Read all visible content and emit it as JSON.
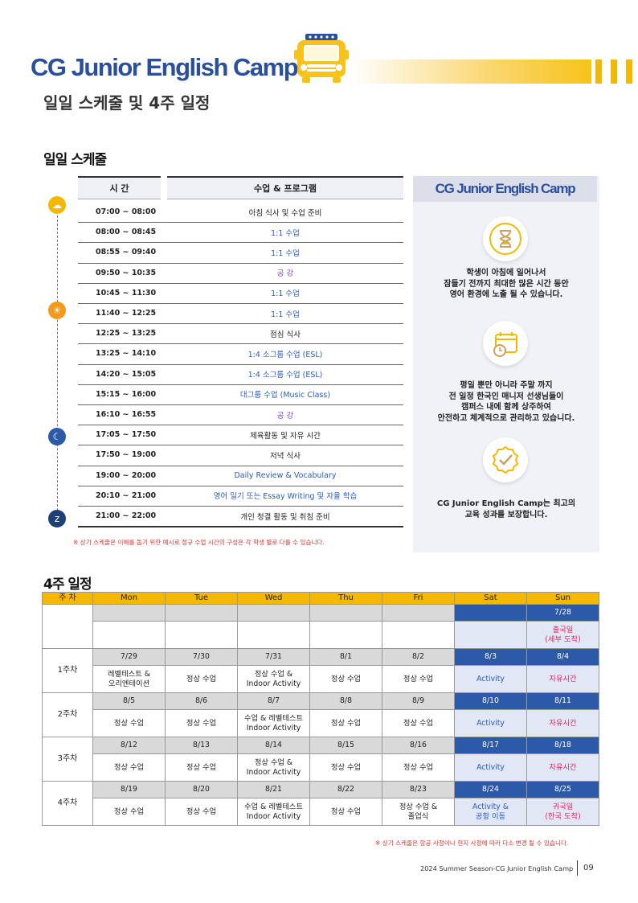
{
  "header": {
    "title": "CG Junior English Camp",
    "subtitle": "일일 스케줄 및 4주 일정"
  },
  "daily": {
    "section_title": "일일 스케줄",
    "col_time": "시 간",
    "col_program": "수업 & 프로그램",
    "rows": [
      {
        "time": "07:00 ~ 08:00",
        "program": "아침 식사 및 수업 준비",
        "color": "#222222"
      },
      {
        "time": "08:00 ~ 08:45",
        "program": "1:1 수업",
        "color": "#2a5bc0"
      },
      {
        "time": "08:55 ~ 09:40",
        "program": "1:1 수업",
        "color": "#2a5bc0"
      },
      {
        "time": "09:50 ~ 10:35",
        "program": "공 강",
        "color": "#8a3fb5"
      },
      {
        "time": "10:45 ~ 11:30",
        "program": "1:1 수업",
        "color": "#2a5bc0"
      },
      {
        "time": "11:40 ~ 12:25",
        "program": "1:1 수업",
        "color": "#2a5bc0"
      },
      {
        "time": "12:25 ~ 13:25",
        "program": "점심 식사",
        "color": "#222222"
      },
      {
        "time": "13:25 ~ 14:10",
        "program": "1:4 소그룹 수업 (ESL)",
        "color": "#2a5bc0"
      },
      {
        "time": "14:20 ~ 15:05",
        "program": "1:4 소그룹 수업 (ESL)",
        "color": "#2a5bc0"
      },
      {
        "time": "15:15 ~ 16:00",
        "program": "대그룹 수업  (Music Class)",
        "color": "#2a5bc0"
      },
      {
        "time": "16:10 ~ 16:55",
        "program": "공 강",
        "color": "#8a3fb5"
      },
      {
        "time": "17:05 ~ 17:50",
        "program": "체육활동 및 자유 시간",
        "color": "#222222"
      },
      {
        "time": "17:50 ~ 19:00",
        "program": "저녁 식사",
        "color": "#222222"
      },
      {
        "time": "19:00 ~ 20:00",
        "program": "Daily Review & Vocabulary",
        "color": "#2a5bc0"
      },
      {
        "time": "20:10 ~ 21:00",
        "program": "영어 일기 또는 Essay Writing 및 자율 학습",
        "color": "#2a5bc0"
      },
      {
        "time": "21:00 ~ 22:00",
        "program": "개인 청결 활동 및 취침 준비",
        "color": "#222222"
      }
    ],
    "note": "※ 상기 스케줄은 이해를 돕기 위한 예시로 정규 수업 시간의 구성은 각 학생 별로 다를 수 있습니다."
  },
  "timeline_icons": [
    {
      "name": "sunrise-icon",
      "color": "#f5b800",
      "glyph": "☁"
    },
    {
      "name": "sun-icon",
      "color": "#f39a1e",
      "glyph": "☀"
    },
    {
      "name": "moon-icon",
      "color": "#2c5aa8",
      "glyph": "☾"
    },
    {
      "name": "bed-icon",
      "color": "#1f3f78",
      "glyph": "z"
    }
  ],
  "card": {
    "title": "CG Junior English Camp",
    "features": [
      {
        "icon": "hourglass-icon",
        "text": [
          "학생이 아침에 일어나서",
          "잠들기 전까지 최대한 많은 시간 동안",
          "영어 환경에 노출 될 수 있습니다."
        ]
      },
      {
        "icon": "calendar-clock-icon",
        "text": [
          "평일 뿐만 아니라 주말 까지",
          "전 일정 한국인 매니저 선생님들이",
          "캠퍼스 내에 함께 상주하여",
          "안전하고 체계적으로 관리하고 있습니다."
        ]
      },
      {
        "icon": "badge-check-icon",
        "text": [
          "CG Junior English Camp는 최고의",
          "교육 성과를 보장합니다."
        ]
      }
    ]
  },
  "weekly": {
    "section_title": "4주 일정",
    "headers": [
      "주 차",
      "Mon",
      "Tue",
      "Wed",
      "Thu",
      "Fri",
      "Sat",
      "Sun"
    ],
    "pre_week": {
      "dates": [
        "",
        "",
        "",
        "",
        "",
        "",
        "7/28"
      ],
      "items": [
        "",
        "",
        "",
        "",
        "",
        "",
        "출국일\n(세부 도착)"
      ]
    },
    "weeks": [
      {
        "label": "1주차",
        "dates": [
          "7/29",
          "7/30",
          "7/31",
          "8/1",
          "8/2",
          "8/3",
          "8/4"
        ],
        "items": [
          "레벨테스트 &\n오리엔테이션",
          "정상 수업",
          "정상 수업 &\nIndoor Activity",
          "정상 수업",
          "정상 수업",
          "Activity",
          "자유시간"
        ]
      },
      {
        "label": "2주차",
        "dates": [
          "8/5",
          "8/6",
          "8/7",
          "8/8",
          "8/9",
          "8/10",
          "8/11"
        ],
        "items": [
          "정상 수업",
          "정상 수업",
          "수업 & 레벨테스트\nIndoor Activity",
          "정상 수업",
          "정상 수업",
          "Activity",
          "자유시간"
        ]
      },
      {
        "label": "3주차",
        "dates": [
          "8/12",
          "8/13",
          "8/14",
          "8/15",
          "8/16",
          "8/17",
          "8/18"
        ],
        "items": [
          "정상 수업",
          "정상 수업",
          "정상 수업 &\nIndoor Activity",
          "정상 수업",
          "정상 수업",
          "Activity",
          "자유시간"
        ]
      },
      {
        "label": "4주차",
        "dates": [
          "8/19",
          "8/20",
          "8/21",
          "8/22",
          "8/23",
          "8/24",
          "8/25"
        ],
        "items": [
          "정상 수업",
          "정상 수업",
          "수업 & 레벨테스트\nIndoor Activity",
          "정상 수업",
          "정상 수업 &\n졸업식",
          "Activity &\n공항 이동",
          "귀국일\n(한국 도착)"
        ]
      }
    ],
    "note": "※ 상기 스케줄은 항공 사정이나 현지 사정에 따라 다소 변경 될 수 있습니다."
  },
  "footer": {
    "text": "2024 Summer Season-CG Junior English Camp",
    "page": "09"
  }
}
